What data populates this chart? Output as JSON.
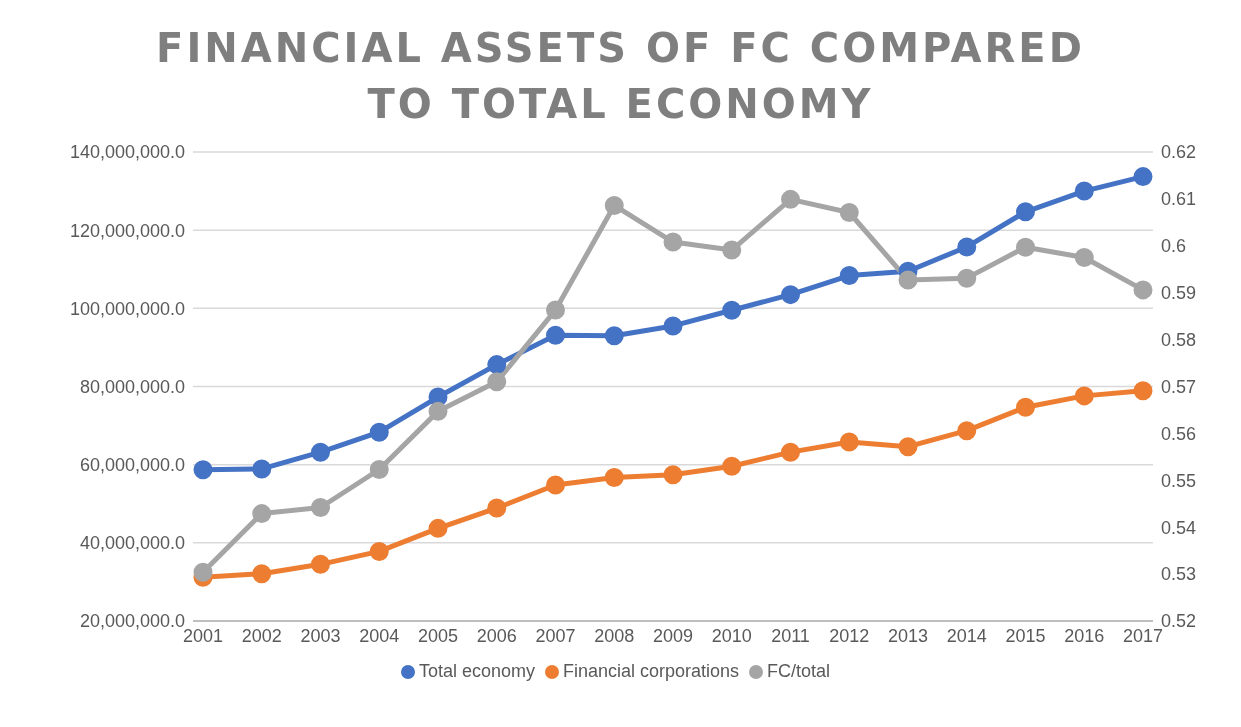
{
  "chart_data": {
    "type": "line",
    "title": "FINANCIAL ASSETS OF FC COMPARED TO TOTAL ECONOMY",
    "categories": [
      "2001",
      "2002",
      "2003",
      "2004",
      "2005",
      "2006",
      "2007",
      "2008",
      "2009",
      "2010",
      "2011",
      "2012",
      "2013",
      "2014",
      "2015",
      "2016",
      "2017"
    ],
    "series": [
      {
        "name": "Total economy",
        "color": "#4472c4",
        "values": [
          58700000,
          58900000,
          63200000,
          68300000,
          77300000,
          85600000,
          93100000,
          93000000,
          95500000,
          99500000,
          103500000,
          108400000,
          109500000,
          115700000,
          124700000,
          130000000,
          133700000
        ]
      },
      {
        "name": "Financial corporations",
        "color": "#ed7d31",
        "values": [
          31200000,
          32100000,
          34500000,
          37800000,
          43700000,
          48900000,
          54800000,
          56700000,
          57400000,
          59600000,
          63200000,
          65800000,
          64600000,
          68700000,
          74700000,
          77600000,
          78900000
        ]
      },
      {
        "name": "FC/total",
        "color": "#a5a5a5",
        "axis": "y2",
        "values": [
          0.5304,
          0.5429,
          0.5442,
          0.5523,
          0.5647,
          0.571,
          0.5863,
          0.6086,
          0.6008,
          0.5991,
          0.6099,
          0.6071,
          0.5927,
          0.5931,
          0.5997,
          0.5975,
          0.5906
        ]
      }
    ],
    "ylim": [
      20000000,
      140000000
    ],
    "yticks": [
      {
        "value": 20000000,
        "label": "20,000,000.0"
      },
      {
        "value": 40000000,
        "label": "40,000,000.0"
      },
      {
        "value": 60000000,
        "label": "60,000,000.0"
      },
      {
        "value": 80000000,
        "label": "80,000,000.0"
      },
      {
        "value": 100000000,
        "label": "100,000,000.0"
      },
      {
        "value": 120000000,
        "label": "120,000,000.0"
      },
      {
        "value": 140000000,
        "label": "140,000,000.0"
      }
    ],
    "y2lim": [
      0.52,
      0.62
    ],
    "y2ticks": [
      0.52,
      0.53,
      0.54,
      0.55,
      0.56,
      0.57,
      0.58,
      0.59,
      0.6,
      0.61,
      0.62
    ],
    "grid": "y",
    "legend": "bottom",
    "marker": "circle",
    "line_style": "solid"
  }
}
